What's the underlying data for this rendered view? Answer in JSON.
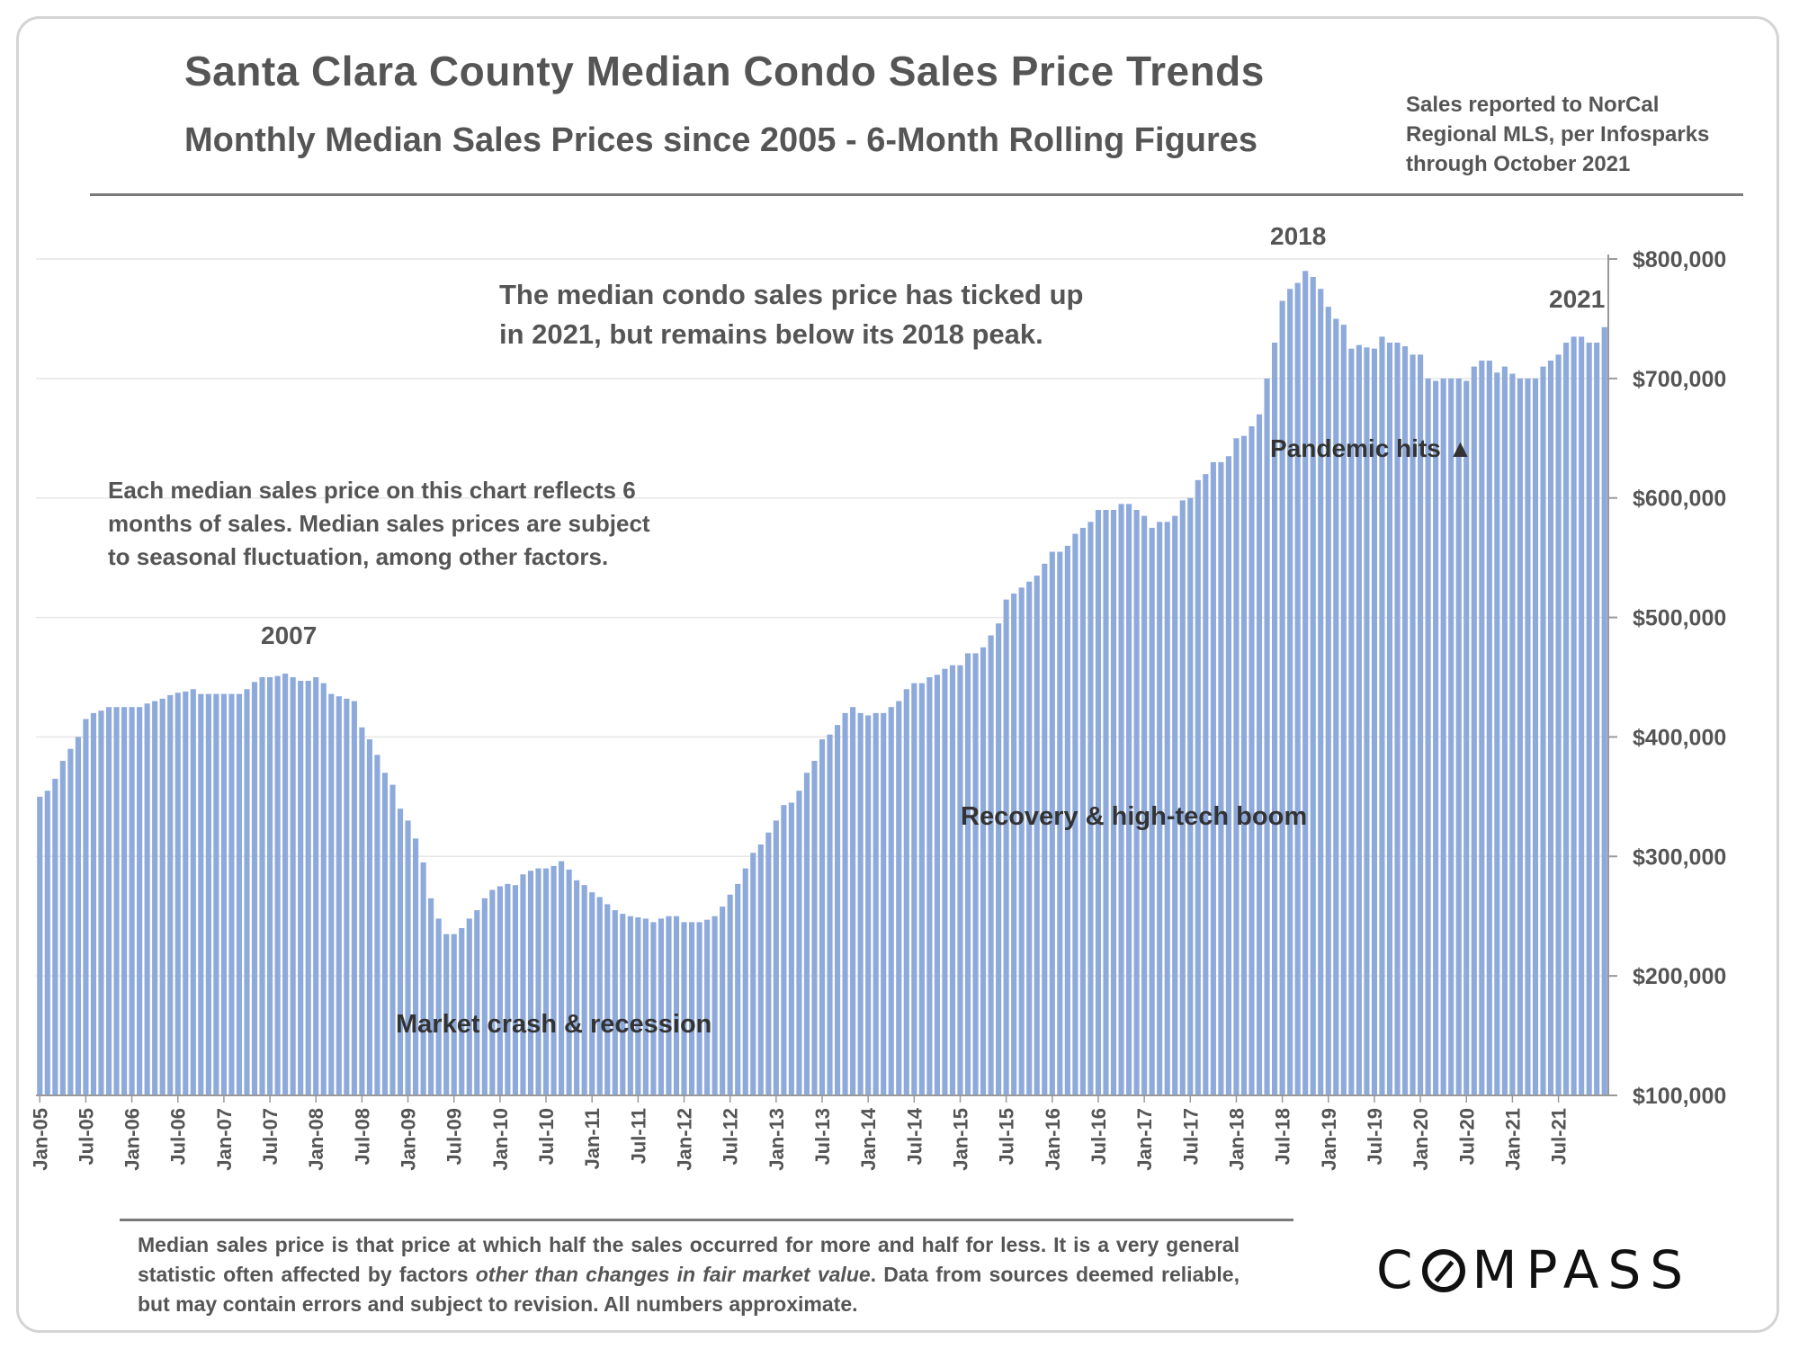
{
  "header": {
    "title": "Santa Clara County Median Condo Sales Price Trends",
    "subtitle": "Monthly Median Sales Prices since 2005 - 6-Month Rolling Figures",
    "source_lines": [
      "Sales reported to NorCal",
      "Regional MLS, per Infosparks",
      "through October 2021"
    ]
  },
  "annotations": {
    "note_top": [
      "The median condo sales price has ticked up",
      "in 2021, but remains below its 2018 peak."
    ],
    "note_left": [
      "Each median sales price on this chart reflects 6",
      "months of sales. Median sales prices are subject",
      "to seasonal fluctuation, among other factors."
    ],
    "peak_2007": "2007",
    "peak_2018": "2018",
    "label_2021": "2021",
    "pandemic": "Pandemic hits ▲",
    "recovery": "Recovery & high-tech boom",
    "crash": "Market crash & recession"
  },
  "footer": {
    "footnote_a": "Median sales price is that price at which half the sales occurred for more and half for less. It is a very general statistic often affected by factors ",
    "footnote_em": "other than changes in fair market value",
    "footnote_b": ". Data from sources deemed reliable, but may contain errors and subject to revision. All numbers approximate.",
    "logo_text": "MPASS",
    "logo_prefix": "C"
  },
  "colors": {
    "bar": "#8eaadb",
    "text": "#555555",
    "grid": "#e6e6e6"
  },
  "chart_data": {
    "type": "bar",
    "xlabel": "",
    "ylabel": "",
    "ylim": [
      100000,
      800000
    ],
    "yticks": [
      100000,
      200000,
      300000,
      400000,
      500000,
      600000,
      700000,
      800000
    ],
    "ytick_labels": [
      "$100,000",
      "$200,000",
      "$300,000",
      "$400,000",
      "$500,000",
      "$600,000",
      "$700,000",
      "$800,000"
    ],
    "start": "Jan-05",
    "tick_labels": [
      "Jan-05",
      "Jul-05",
      "Jan-06",
      "Jul-06",
      "Jan-07",
      "Jul-07",
      "Jan-08",
      "Jul-08",
      "Jan-09",
      "Jul-09",
      "Jan-10",
      "Jul-10",
      "Jan-11",
      "Jul-11",
      "Jan-12",
      "Jul-12",
      "Jan-13",
      "Jul-13",
      "Jan-14",
      "Jul-14",
      "Jan-15",
      "Jul-15",
      "Jan-16",
      "Jul-16",
      "Jan-17",
      "Jul-17",
      "Jan-18",
      "Jul-18",
      "Jan-19",
      "Jul-19",
      "Jan-20",
      "Jul-20",
      "Jan-21",
      "Jul-21"
    ],
    "values": [
      350000,
      355000,
      365000,
      380000,
      390000,
      400000,
      415000,
      420000,
      422000,
      425000,
      425000,
      425000,
      425000,
      425000,
      428000,
      430000,
      432000,
      435000,
      437000,
      438000,
      440000,
      436000,
      436000,
      436000,
      436000,
      436000,
      436000,
      440000,
      446000,
      450000,
      450000,
      451000,
      453000,
      450000,
      447000,
      447000,
      450000,
      445000,
      436000,
      434000,
      432000,
      430000,
      408000,
      398000,
      385000,
      370000,
      360000,
      340000,
      330000,
      315000,
      295000,
      265000,
      248000,
      235000,
      235000,
      240000,
      248000,
      255000,
      265000,
      272000,
      275000,
      277000,
      276000,
      285000,
      288000,
      290000,
      290000,
      292000,
      296000,
      289000,
      280000,
      276000,
      270000,
      266000,
      260000,
      255000,
      252000,
      250000,
      249000,
      248000,
      245000,
      248000,
      250000,
      250000,
      245000,
      245000,
      245000,
      247000,
      250000,
      258000,
      268000,
      277000,
      290000,
      303000,
      310000,
      320000,
      330000,
      343000,
      345000,
      355000,
      370000,
      380000,
      398000,
      402000,
      410000,
      420000,
      425000,
      420000,
      418000,
      420000,
      420000,
      425000,
      430000,
      440000,
      445000,
      445000,
      450000,
      452000,
      457000,
      460000,
      460000,
      470000,
      470000,
      475000,
      485000,
      495000,
      515000,
      520000,
      525000,
      530000,
      535000,
      545000,
      555000,
      555000,
      560000,
      570000,
      575000,
      580000,
      590000,
      590000,
      590000,
      595000,
      595000,
      590000,
      585000,
      575000,
      580000,
      580000,
      585000,
      598000,
      600000,
      615000,
      620000,
      630000,
      630000,
      635000,
      650000,
      652000,
      660000,
      670000,
      700000,
      730000,
      765000,
      775000,
      780000,
      790000,
      785000,
      775000,
      760000,
      750000,
      745000,
      725000,
      728000,
      726000,
      725000,
      735000,
      730000,
      730000,
      727000,
      720000,
      720000,
      700000,
      698000,
      700000,
      700000,
      700000,
      698000,
      710000,
      715000,
      715000,
      705000,
      710000,
      704000,
      700000,
      700000,
      700000,
      710000,
      715000,
      720000,
      730000,
      735000,
      735000,
      730000,
      730000,
      743000
    ]
  }
}
